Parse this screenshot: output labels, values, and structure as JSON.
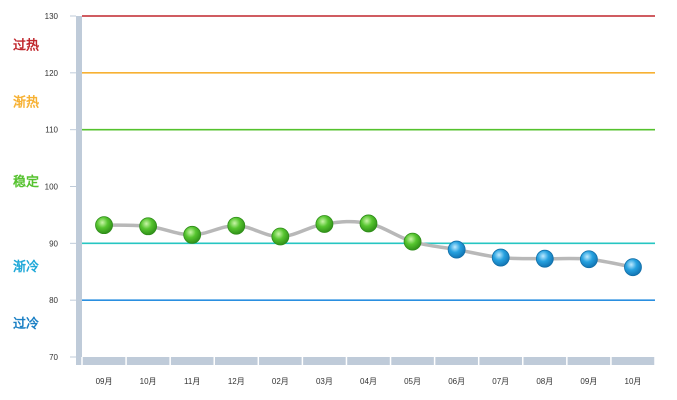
{
  "chart_data": {
    "type": "line",
    "title": "",
    "xlabel": "",
    "ylabel": "",
    "ylim": [
      70,
      130
    ],
    "yticks": [
      "70",
      "80",
      "90",
      "100",
      "110",
      "120",
      "130"
    ],
    "categories": [
      "09月",
      "10月",
      "11月",
      "12月",
      "02月",
      "03月",
      "04月",
      "05月",
      "06月",
      "07月",
      "08月",
      "09月",
      "10月"
    ],
    "series": [
      {
        "values": [
          93.2,
          93.0,
          91.5,
          93.1,
          91.2,
          93.4,
          93.5,
          90.3,
          88.9,
          87.5,
          87.3,
          87.2,
          85.8
        ]
      }
    ],
    "reference_lines": [
      {
        "value": 130,
        "color": "#c0272d"
      },
      {
        "value": 120,
        "color": "#f7b133"
      },
      {
        "value": 110,
        "color": "#55c22e"
      },
      {
        "value": 90,
        "color": "#26c6c2"
      },
      {
        "value": 80,
        "color": "#2a8fe0"
      }
    ],
    "zones": [
      {
        "label": "过热",
        "center": 125,
        "color": "#c0272d"
      },
      {
        "label": "渐热",
        "center": 115,
        "color": "#f7b133"
      },
      {
        "label": "稳定",
        "center": 101,
        "color": "#55c22e"
      },
      {
        "label": "渐冷",
        "center": 86,
        "color": "#1fa8d8"
      },
      {
        "label": "过冷",
        "center": 76,
        "color": "#1a7fc4"
      }
    ],
    "marker_colors": {
      "above": "#4bbf2c",
      "below": "#1f9bd9"
    },
    "marker_threshold": 90,
    "line_color": "#b8b8b8",
    "axis_color": "#bfcbd9",
    "grid": false,
    "legend": "none"
  }
}
